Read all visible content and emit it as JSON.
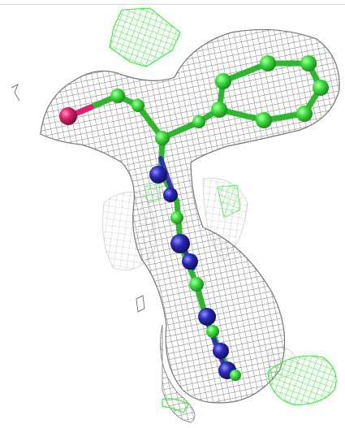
{
  "scene": {
    "subject": "ligand-in-electron-density-map",
    "icons": [
      "density-mesh",
      "ligand-bonds",
      "atom-spheres"
    ],
    "colors": {
      "background": "#ffffff",
      "density_mesh": "#7a7a7a",
      "density_mesh_faint": "#b8b8b8",
      "difference_mesh_positive": "#33ee33",
      "carbon": "#3ee03e",
      "nitrogen": "#2a2ab8",
      "oxygen": "#e0206e"
    }
  }
}
